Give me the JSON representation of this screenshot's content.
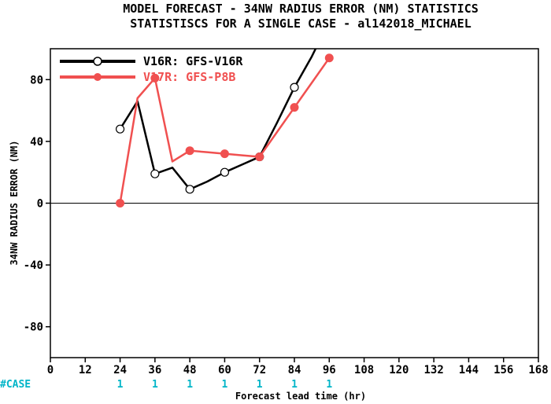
{
  "title_line1": "MODEL FORECAST - 34NW RADIUS ERROR (NM) STATISTICS",
  "title_line2": "STATISTISCS FOR A SINGLE CASE - al142018_MICHAEL",
  "case_label": "#CASE",
  "chart_data": {
    "type": "line",
    "xlabel": "Forecast lead time (hr)",
    "ylabel": "34NW RADIUS ERROR (NM)",
    "xlim": [
      0,
      168
    ],
    "ylim": [
      -100,
      100
    ],
    "x_ticks": [
      0,
      12,
      24,
      36,
      48,
      60,
      72,
      84,
      96,
      108,
      120,
      132,
      144,
      156,
      168
    ],
    "y_ticks": [
      -80,
      -40,
      0,
      40,
      80
    ],
    "zero_line": true,
    "legend_position": "top-left",
    "series": [
      {
        "name": "V16R: GFS-V16R",
        "color": "#000000",
        "marker": "open-circle",
        "x": [
          24,
          30,
          36,
          42,
          48,
          54,
          60,
          66,
          72,
          78,
          84,
          90,
          96
        ],
        "y": [
          48,
          66,
          19,
          23,
          9,
          14,
          20,
          25,
          30,
          52,
          75,
          95,
          118
        ],
        "marker_x": [
          24,
          36,
          48,
          60,
          72,
          84,
          96
        ],
        "marker_y": [
          48,
          19,
          9,
          20,
          30,
          75,
          118
        ]
      },
      {
        "name": "V17R: GFS-P8B",
        "color": "#f05050",
        "marker": "filled-circle",
        "x": [
          24,
          30,
          36,
          42,
          48,
          54,
          60,
          66,
          72,
          78,
          84,
          90,
          96
        ],
        "y": [
          0,
          68,
          81,
          27,
          34,
          33,
          32,
          31,
          30,
          46,
          62,
          78,
          94
        ],
        "marker_x": [
          24,
          36,
          48,
          60,
          72,
          84,
          96
        ],
        "marker_y": [
          0,
          81,
          34,
          32,
          30,
          62,
          94
        ]
      }
    ],
    "case_counts": {
      "x": [
        24,
        36,
        48,
        60,
        72,
        84,
        96
      ],
      "values": [
        "1",
        "1",
        "1",
        "1",
        "1",
        "1",
        "1"
      ]
    }
  }
}
